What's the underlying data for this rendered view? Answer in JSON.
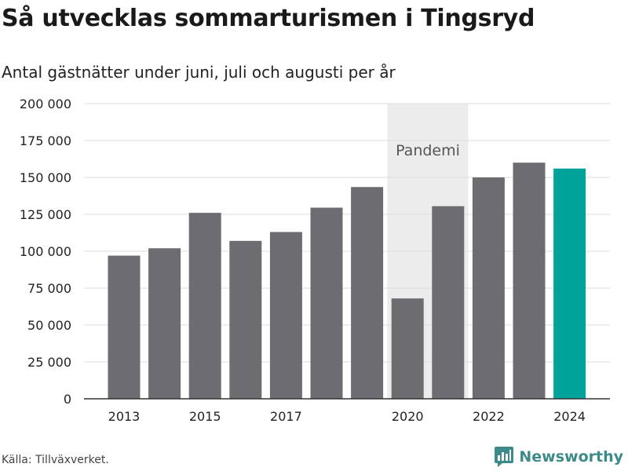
{
  "header": {
    "title": "Så utvecklas sommarturismen i Tingsryd",
    "subtitle": "Antal gästnätter under juni, juli och augusti per år"
  },
  "footer": {
    "source": "Källa: Tillväxverket.",
    "brand": "Newsworthy"
  },
  "colors": {
    "bar": "#6d6c71",
    "highlight": "#00a39a",
    "band": "#ececec",
    "grid": "#dddddd",
    "brand": "#3d8a88"
  },
  "chart_data": {
    "type": "bar",
    "categories": [
      "2013",
      "2014",
      "2015",
      "2016",
      "2017",
      "2018",
      "2019",
      "2020",
      "2021",
      "2022",
      "2023",
      "2024"
    ],
    "values": [
      97000,
      102000,
      126000,
      107000,
      113000,
      129500,
      143500,
      68000,
      130500,
      150000,
      160000,
      156000
    ],
    "highlight_category": "2024",
    "x_tick_labels": [
      "2013",
      "2015",
      "2017",
      "2020",
      "2022",
      "2024"
    ],
    "y_ticks": [
      0,
      25000,
      50000,
      75000,
      100000,
      125000,
      150000,
      175000,
      200000
    ],
    "y_tick_labels": [
      "0",
      "25 000",
      "50 000",
      "75 000",
      "100 000",
      "125 000",
      "150 000",
      "175 000",
      "200 000"
    ],
    "ylim": [
      0,
      200000
    ],
    "grid": true,
    "shaded_band": {
      "from": "2020",
      "to": "2021",
      "label": "Pandemi"
    }
  }
}
